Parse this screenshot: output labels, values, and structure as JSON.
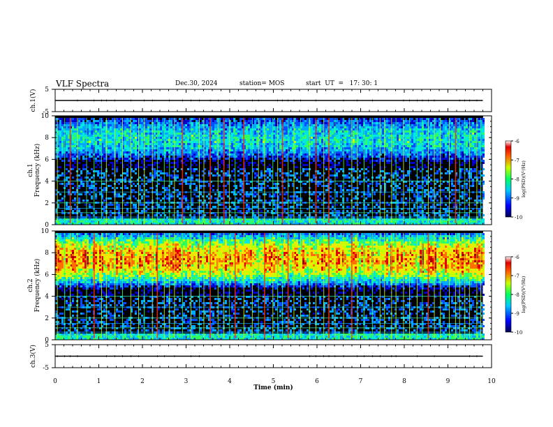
{
  "header": {
    "title": "VLF Spectra",
    "date": "Dec.30, 2024",
    "station": "station= MOS",
    "start_ut": "start  UT  =   17: 30: 1"
  },
  "colors": {
    "background": "#000000",
    "colormap": [
      "#000060",
      "#0000c8",
      "#0050ff",
      "#00a8ff",
      "#00e8e0",
      "#30ff60",
      "#c8ff00",
      "#ffe000",
      "#ff7000",
      "#e80000",
      "#a00000",
      "#ffffff"
    ]
  },
  "chart_data": [
    {
      "type": "line",
      "panel": "ch1-waveform",
      "ylabel": "ch.1(V)",
      "ylim": [
        -5,
        5
      ],
      "yticks": [
        5,
        -5
      ],
      "x": [
        0,
        9.8
      ],
      "values": [
        0,
        0
      ]
    },
    {
      "type": "heatmap",
      "panel": "ch1-spectrogram",
      "ylabel_line1": "ch.1",
      "ylabel_line2": "Frequency (kHz)",
      "ylim": [
        0,
        10
      ],
      "yticks": [
        0,
        2,
        4,
        6,
        8,
        10
      ],
      "x_range_min": [
        0,
        9.8
      ],
      "colorbar": {
        "label": "log(PSD)(V²/Hz)",
        "range": [
          -10,
          -6
        ],
        "ticks": [
          "-6",
          "-7",
          "-8",
          "-9",
          "-10"
        ]
      },
      "band_kHz": [
        6.5,
        9.5
      ],
      "band_peak_log_psd": -8.5
    },
    {
      "type": "heatmap",
      "panel": "ch2-spectrogram",
      "ylabel_line1": "ch.2",
      "ylabel_line2": "Frequency (kHz)",
      "ylim": [
        0,
        10
      ],
      "yticks": [
        0,
        2,
        4,
        6,
        8,
        10
      ],
      "x_range_min": [
        0,
        9.8
      ],
      "colorbar": {
        "label": "log(PSD)(V²/Hz)",
        "range": [
          -10,
          -6
        ],
        "ticks": [
          "-6",
          "-7",
          "-8",
          "-9",
          "-10"
        ]
      },
      "band_kHz": [
        5.5,
        9.5
      ],
      "band_peak_log_psd": -7
    },
    {
      "type": "line",
      "panel": "ch3-waveform",
      "ylabel": "ch.3(V)",
      "ylim": [
        -5,
        5
      ],
      "yticks": [
        5,
        -5
      ],
      "x": [
        0,
        9.8
      ],
      "values": [
        0,
        0
      ]
    }
  ],
  "x_axis": {
    "label": "Time  (min)",
    "ticks": [
      "0",
      "1",
      "2",
      "3",
      "4",
      "5",
      "6",
      "7",
      "8",
      "9",
      "10"
    ],
    "range": [
      0,
      10
    ]
  }
}
